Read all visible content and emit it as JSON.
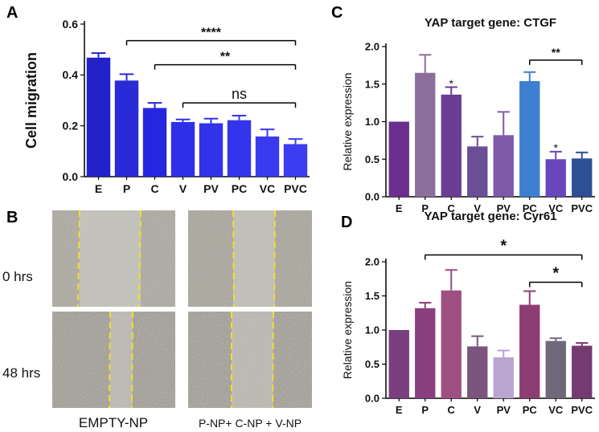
{
  "panels": {
    "a": "A",
    "b": "B",
    "c": "C",
    "d": "D"
  },
  "chart_data": [
    {
      "id": "A",
      "type": "bar",
      "title": "",
      "xlabel": "",
      "ylabel": "Cell migration",
      "ylim": [
        0,
        0.6
      ],
      "yticks": [
        "0.0",
        "0.2",
        "0.4",
        "0.6"
      ],
      "categories": [
        "E",
        "P",
        "C",
        "V",
        "PV",
        "PC",
        "VC",
        "PVC"
      ],
      "values": [
        0.468,
        0.378,
        0.27,
        0.215,
        0.21,
        0.222,
        0.158,
        0.128
      ],
      "errors": [
        0.018,
        0.025,
        0.02,
        0.01,
        0.018,
        0.018,
        0.028,
        0.02
      ],
      "colors": [
        "#2222c8",
        "#2a2ad6",
        "#2626e0",
        "#2f2fe8",
        "#3232ea",
        "#3434ec",
        "#3a3aee",
        "#3c3cf0"
      ],
      "annotations": [
        {
          "label": "****",
          "from": "P",
          "to": "PVC",
          "y": 0.535
        },
        {
          "label": "**",
          "from": "C",
          "to": "PVC",
          "y": 0.44
        },
        {
          "label": "ns",
          "from": "V",
          "to": "PVC",
          "y": 0.29
        }
      ]
    },
    {
      "id": "C",
      "type": "bar",
      "title": "YAP target gene: CTGF",
      "xlabel": "",
      "ylabel": "Relative expression",
      "ylim": [
        0,
        2.0
      ],
      "yticks": [
        "0.0",
        "0.5",
        "1.0",
        "1.5",
        "2.0"
      ],
      "categories": [
        "E",
        "P",
        "C",
        "V",
        "PV",
        "PC",
        "VC",
        "PVC"
      ],
      "values": [
        1.0,
        1.65,
        1.36,
        0.67,
        0.82,
        1.54,
        0.5,
        0.51
      ],
      "errors": [
        0.0,
        0.24,
        0.1,
        0.13,
        0.31,
        0.12,
        0.1,
        0.08
      ],
      "colors": [
        "#6b2f8e",
        "#8c6e9c",
        "#6a3c94",
        "#6a4e96",
        "#7e5aa8",
        "#3f7fd0",
        "#6a46bd",
        "#2e4f96"
      ],
      "annotations": [
        {
          "label": "*",
          "from": "C",
          "to": "C",
          "y": 1.5
        },
        {
          "label": "*",
          "from": "VC",
          "to": "VC",
          "y": 0.64
        },
        {
          "label": "**",
          "from": "PC",
          "to": "PVC",
          "y": 1.82
        }
      ]
    },
    {
      "id": "D",
      "type": "bar",
      "title": "YAP target gene: Cyr61",
      "xlabel": "",
      "ylabel": "Relative expression",
      "ylim": [
        0,
        2.0
      ],
      "yticks": [
        "0.0",
        "0.5",
        "1.0",
        "1.5",
        "2.0"
      ],
      "categories": [
        "E",
        "P",
        "C",
        "V",
        "PV",
        "PC",
        "VC",
        "PVC"
      ],
      "values": [
        1.0,
        1.32,
        1.58,
        0.76,
        0.6,
        1.37,
        0.84,
        0.77
      ],
      "errors": [
        0.0,
        0.08,
        0.3,
        0.15,
        0.1,
        0.2,
        0.04,
        0.04
      ],
      "colors": [
        "#7a3f7e",
        "#8a3f7e",
        "#9e4f82",
        "#7c557e",
        "#b9a5cf",
        "#8c3e72",
        "#6f6878",
        "#743a72"
      ],
      "annotations": [
        {
          "label": "*",
          "from": "P",
          "to": "PVC",
          "y": 2.1
        },
        {
          "label": "*",
          "from": "PC",
          "to": "PVC",
          "y": 1.7
        }
      ]
    }
  ],
  "photos": {
    "rows": [
      "0 hrs",
      "48 hrs"
    ],
    "cols": [
      "EMPTY-NP",
      "P-NP+ C-NP + V-NP"
    ]
  }
}
